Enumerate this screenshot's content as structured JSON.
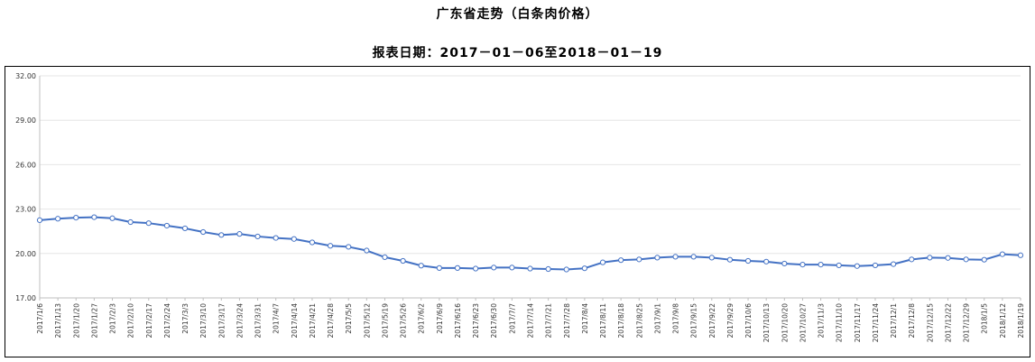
{
  "chart_data": {
    "type": "line",
    "title": "广东省走势（白条肉价格）",
    "subtitle": "报表日期：2017－01－06至2018－01－19",
    "xlabel": "",
    "ylabel": "",
    "ylim": [
      17.0,
      32.0
    ],
    "yticks": [
      "17.00",
      "20.00",
      "23.00",
      "26.00",
      "29.00",
      "32.00"
    ],
    "grid": true,
    "legend": "none",
    "color": "#4472C4",
    "categories": [
      "2017/1/6",
      "2017/1/13",
      "2017/1/20",
      "2017/1/27",
      "2017/2/3",
      "2017/2/10",
      "2017/2/17",
      "2017/2/24",
      "2017/3/3",
      "2017/3/10",
      "2017/3/17",
      "2017/3/24",
      "2017/3/31",
      "2017/4/7",
      "2017/4/14",
      "2017/4/21",
      "2017/4/28",
      "2017/5/5",
      "2017/5/12",
      "2017/5/19",
      "2017/5/26",
      "2017/6/2",
      "2017/6/9",
      "2017/6/16",
      "2017/6/23",
      "2017/6/30",
      "2017/7/7",
      "2017/7/14",
      "2017/7/21",
      "2017/7/28",
      "2017/8/4",
      "2017/8/11",
      "2017/8/18",
      "2017/8/25",
      "2017/9/1",
      "2017/9/8",
      "2017/9/15",
      "2017/9/22",
      "2017/9/29",
      "2017/10/6",
      "2017/10/13",
      "2017/10/20",
      "2017/10/27",
      "2017/11/3",
      "2017/11/10",
      "2017/11/17",
      "2017/11/24",
      "2017/12/1",
      "2017/12/8",
      "2017/12/15",
      "2017/12/22",
      "2017/12/29",
      "2018/1/5",
      "2018/1/12",
      "2018/1/19"
    ],
    "series": [
      {
        "values": [
          22.25,
          22.35,
          22.42,
          22.45,
          22.38,
          22.12,
          22.05,
          21.88,
          21.7,
          21.45,
          21.25,
          21.32,
          21.15,
          21.05,
          20.98,
          20.75,
          20.52,
          20.45,
          20.2,
          19.75,
          19.5,
          19.18,
          19.02,
          19.02,
          18.98,
          19.05,
          19.05,
          18.98,
          18.95,
          18.92,
          19.0,
          19.4,
          19.55,
          19.6,
          19.72,
          19.78,
          19.78,
          19.72,
          19.58,
          19.5,
          19.45,
          19.32,
          19.25,
          19.25,
          19.2,
          19.15,
          19.2,
          19.28,
          19.6,
          19.72,
          19.7,
          19.6,
          19.58,
          19.95,
          19.88
        ]
      }
    ]
  }
}
